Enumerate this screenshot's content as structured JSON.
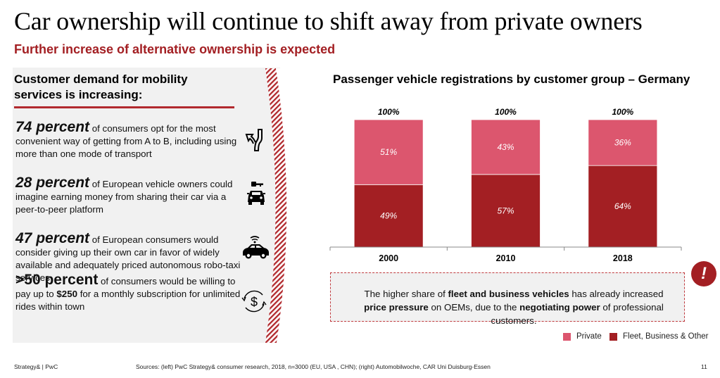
{
  "header": {
    "title": "Car ownership will continue to shift away from private owners",
    "subtitle": "Further increase of alternative ownership is expected"
  },
  "left_panel": {
    "heading": "Customer demand for mobility services is increasing:",
    "stats": [
      {
        "figure": "74 percent",
        "text": " of consumers opt for the most convenient way of getting from A to B, including using more than one mode of transport",
        "icon": "merge-arrow-icon"
      },
      {
        "figure": "28 percent",
        "text": " of European vehicle owners could imagine earning money from sharing their car via a peer-to-peer platform",
        "icon": "car-key-icon"
      },
      {
        "figure": "47 percent",
        "text": " of European consumers would consider giving up their own car in favor of widely available and adequately priced autonomous robo-taxi services",
        "icon": "connected-car-icon"
      },
      {
        "figure": ">50 percent",
        "text_pre": " of consumers would be willing to pay up to ",
        "text_bold": "$250",
        "text_post": " for a monthly subscription for unlimited rides within town",
        "icon": "dollar-cycle-icon"
      }
    ]
  },
  "chart_data": {
    "type": "bar",
    "stacked": true,
    "title": "Passenger vehicle registrations by customer group – Germany",
    "categories": [
      "2000",
      "2010",
      "2018"
    ],
    "totals": [
      "100%",
      "100%",
      "100%"
    ],
    "series": [
      {
        "name": "Fleet, Business & Other",
        "values": [
          49,
          57,
          64
        ],
        "color": "#a31f23"
      },
      {
        "name": "Private",
        "values": [
          51,
          43,
          36
        ],
        "color": "#dc566e"
      }
    ],
    "ylim": [
      0,
      100
    ],
    "value_suffix": "%",
    "xlabel": "",
    "ylabel": "",
    "grid": false,
    "legend": "bottom-right"
  },
  "callout": {
    "parts": [
      {
        "t": "The higher share of ",
        "b": false
      },
      {
        "t": "fleet and business vehicles",
        "b": true
      },
      {
        "t": " has already increased ",
        "b": false
      },
      {
        "t": "price pressure",
        "b": true
      },
      {
        "t": " on OEMs, due to the ",
        "b": false
      },
      {
        "t": "negotiating power",
        "b": true
      },
      {
        "t": " of professional customers.",
        "b": false
      }
    ],
    "alert_symbol": "!"
  },
  "legend": {
    "items": [
      {
        "label": "Private",
        "color": "#dc566e"
      },
      {
        "label": "Fleet, Business & Other",
        "color": "#a31f23"
      }
    ]
  },
  "footer": {
    "brand": "Strategy& | PwC",
    "sources": "Sources: (left) PwC Strategy& consumer research, 2018, n=3000 (EU, USA , CHN); (right) Automobilwoche, CAR Uni Duisburg-Essen",
    "page_number": "11"
  }
}
